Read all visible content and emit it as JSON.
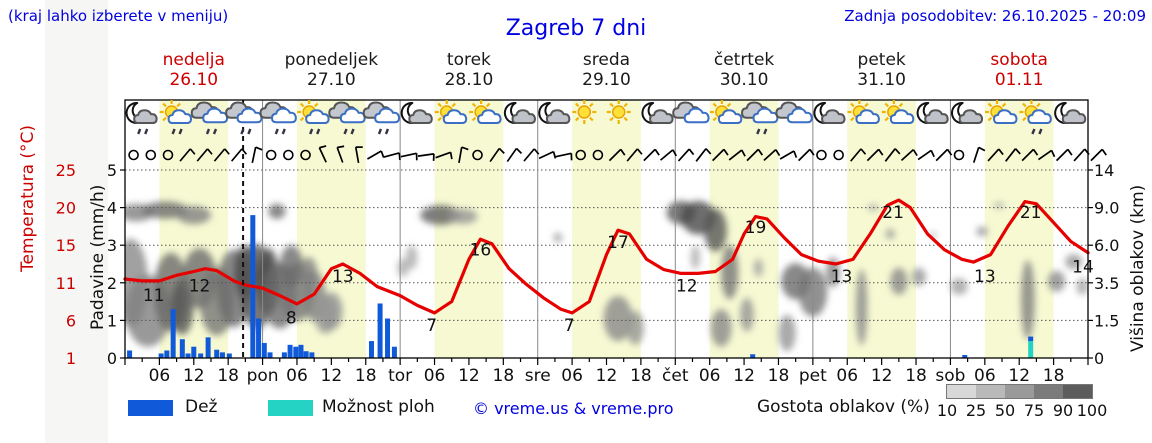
{
  "header": {
    "note": "(kraj lahko izberete v meniju)",
    "title": "Zagreb 7 dni",
    "updated": "Zadnja posodobitev: 26.10.2025 - 20:09"
  },
  "days": [
    {
      "name": "nedelja",
      "date": "26.10",
      "highlight": true
    },
    {
      "name": "ponedeljek",
      "date": "27.10",
      "highlight": false
    },
    {
      "name": "torek",
      "date": "28.10",
      "highlight": false
    },
    {
      "name": "sreda",
      "date": "29.10",
      "highlight": false
    },
    {
      "name": "četrtek",
      "date": "30.10",
      "highlight": false
    },
    {
      "name": "petek",
      "date": "31.10",
      "highlight": false
    },
    {
      "name": "sobota",
      "date": "01.11",
      "highlight": true
    }
  ],
  "axes": {
    "temp_label": "Temperatura (°C)",
    "precip_label": "Padavine (mm/h)",
    "cloud_label": "Višina oblakov (km)",
    "temp_ticks": [
      1,
      6,
      11,
      15,
      20,
      25
    ],
    "precip_ticks": [
      0,
      1,
      2,
      3,
      4,
      5
    ],
    "cloud_ticks": [
      "0",
      "1.5",
      "3.5",
      "6.0",
      "9.0",
      "14"
    ],
    "hour_tick_labels": [
      "06",
      "12",
      "18"
    ],
    "day_abbrevs": [
      "pon",
      "tor",
      "sre",
      "čet",
      "pet",
      "sob"
    ]
  },
  "legend": {
    "rain": "Dež",
    "shower": "Možnost ploh",
    "copyright": "© vreme.us & vreme.pro",
    "cloud_density": "Gostota oblakov (%)",
    "cloud_scale": [
      10,
      25,
      50,
      75,
      90,
      100
    ],
    "cloud_scale_colors": [
      "#d8d8d8",
      "#b9b9b9",
      "#9a9a9a",
      "#7b7b7b",
      "#5c5c5c"
    ]
  },
  "colors": {
    "blue_text": "#0000e0",
    "red_text": "#cc0000",
    "temp_line": "#e60000",
    "rain_bar": "#1059d9",
    "shower_bar": "#25d3c5",
    "day_band": "#f6f9d2",
    "grid": "#555555",
    "day_separator": "#8a8a8a"
  },
  "chart_data": {
    "type": "weather-meteogram",
    "x_range_hours": [
      0,
      168
    ],
    "now_hour": 20.6,
    "daylight_hours": [
      6,
      18
    ],
    "temp_scale_anchors": [
      [
        1,
        0
      ],
      [
        6,
        1
      ],
      [
        11,
        2
      ],
      [
        15,
        3
      ],
      [
        20,
        4
      ],
      [
        25,
        5
      ]
    ],
    "cloud_km_anchors": [
      [
        0,
        0
      ],
      [
        1.5,
        1
      ],
      [
        3.5,
        2
      ],
      [
        6,
        3
      ],
      [
        9,
        4
      ],
      [
        14,
        5
      ]
    ],
    "temperature_c": [
      [
        0,
        11.4
      ],
      [
        3,
        11.2
      ],
      [
        6,
        11.2
      ],
      [
        9,
        11.8
      ],
      [
        12,
        12.2
      ],
      [
        14,
        12.5
      ],
      [
        16,
        12.3
      ],
      [
        19,
        11.2
      ],
      [
        21,
        10.7
      ],
      [
        24,
        10.3
      ],
      [
        27,
        9.3
      ],
      [
        30,
        8.2
      ],
      [
        33,
        9.5
      ],
      [
        36,
        12.5
      ],
      [
        38,
        13
      ],
      [
        41,
        12
      ],
      [
        44,
        10.5
      ],
      [
        48,
        9.3
      ],
      [
        51,
        8
      ],
      [
        54,
        7
      ],
      [
        57,
        8.5
      ],
      [
        60,
        13.5
      ],
      [
        62,
        15.8
      ],
      [
        64,
        15.2
      ],
      [
        67,
        12.5
      ],
      [
        70,
        10.8
      ],
      [
        73,
        9
      ],
      [
        76,
        7.5
      ],
      [
        78,
        7
      ],
      [
        81,
        8.5
      ],
      [
        84,
        14
      ],
      [
        86,
        17
      ],
      [
        88,
        16.5
      ],
      [
        91,
        13.5
      ],
      [
        94,
        12.4
      ],
      [
        97,
        12
      ],
      [
        100,
        12
      ],
      [
        103,
        12.2
      ],
      [
        106,
        13.5
      ],
      [
        108,
        16.5
      ],
      [
        110,
        18.8
      ],
      [
        112,
        18.5
      ],
      [
        115,
        16
      ],
      [
        118,
        14
      ],
      [
        121,
        13.3
      ],
      [
        124,
        13
      ],
      [
        127,
        13.5
      ],
      [
        130,
        16.5
      ],
      [
        133,
        20.3
      ],
      [
        135,
        21
      ],
      [
        137,
        20
      ],
      [
        140,
        16.5
      ],
      [
        143,
        14.5
      ],
      [
        146,
        13.5
      ],
      [
        148,
        13.2
      ],
      [
        151,
        14
      ],
      [
        154,
        17.5
      ],
      [
        157,
        20.8
      ],
      [
        159,
        20.5
      ],
      [
        162,
        18
      ],
      [
        165,
        15.5
      ],
      [
        168,
        14.2
      ]
    ],
    "temp_labels": [
      [
        5,
        11
      ],
      [
        13,
        12
      ],
      [
        29,
        8
      ],
      [
        38,
        13
      ],
      [
        53.5,
        7
      ],
      [
        62,
        16
      ],
      [
        77.5,
        7
      ],
      [
        86,
        17
      ],
      [
        98,
        12
      ],
      [
        110,
        19
      ],
      [
        125,
        13
      ],
      [
        134,
        21
      ],
      [
        150,
        13
      ],
      [
        158,
        21
      ],
      [
        167.5,
        14
      ]
    ],
    "rain_mm_h": [
      [
        0.8,
        0.2
      ],
      [
        6.3,
        0.12
      ],
      [
        7.3,
        0.2
      ],
      [
        8.4,
        1.3
      ],
      [
        10,
        0.5
      ],
      [
        11,
        0.12
      ],
      [
        12,
        0.3
      ],
      [
        13.2,
        0.12
      ],
      [
        14.5,
        0.55
      ],
      [
        16,
        0.22
      ],
      [
        17,
        0.15
      ],
      [
        18.2,
        0.12
      ],
      [
        22.3,
        3.8
      ],
      [
        23.3,
        1.05
      ],
      [
        24.3,
        0.4
      ],
      [
        25.3,
        0.15
      ],
      [
        27.8,
        0.15
      ],
      [
        28.8,
        0.35
      ],
      [
        29.8,
        0.3
      ],
      [
        30.7,
        0.35
      ],
      [
        31.6,
        0.18
      ],
      [
        32.6,
        0.15
      ],
      [
        43,
        0.45
      ],
      [
        44.5,
        1.45
      ],
      [
        45.8,
        1.05
      ],
      [
        47,
        0.3
      ],
      [
        109.5,
        0.1
      ],
      [
        146.5,
        0.08
      ],
      [
        158,
        0.12,
        0.45
      ]
    ],
    "shower_mm_h": [
      [
        158,
        0.45
      ]
    ],
    "cloud_blobs": [
      [
        2,
        8.6,
        3,
        0.9,
        0.5
      ],
      [
        7,
        8.8,
        4,
        1.0,
        0.6
      ],
      [
        12,
        8.4,
        3,
        0.8,
        0.5
      ],
      [
        1,
        3.5,
        3,
        3,
        0.45
      ],
      [
        4,
        2,
        4,
        2,
        0.5
      ],
      [
        8,
        3,
        3,
        2.5,
        0.6
      ],
      [
        10,
        2.2,
        2,
        1.5,
        0.7
      ],
      [
        13,
        3.8,
        3,
        2,
        0.6
      ],
      [
        16,
        2.5,
        3,
        2,
        0.55
      ],
      [
        19,
        3.2,
        3,
        2.5,
        0.6
      ],
      [
        21,
        4.2,
        2,
        1.8,
        0.75
      ],
      [
        23,
        3.3,
        3,
        2.8,
        0.7
      ],
      [
        25,
        3.6,
        2,
        2.2,
        0.75
      ],
      [
        27,
        2.8,
        3,
        2,
        0.6
      ],
      [
        30,
        3,
        3,
        1.8,
        0.55
      ],
      [
        33,
        2.8,
        2,
        1.5,
        0.5
      ],
      [
        35,
        1.8,
        2,
        1,
        0.4
      ],
      [
        26.5,
        8.7,
        1.5,
        0.8,
        0.6
      ],
      [
        29,
        4.6,
        2,
        1.4,
        0.6
      ],
      [
        32,
        4.2,
        1.5,
        1,
        0.5
      ],
      [
        36,
        2,
        2,
        1,
        0.4
      ],
      [
        55,
        8.4,
        3.5,
        0.9,
        0.65
      ],
      [
        59,
        8.3,
        2.5,
        0.6,
        0.4
      ],
      [
        50,
        5.2,
        1,
        0.8,
        0.3
      ],
      [
        48.5,
        4.5,
        1,
        0.6,
        0.3
      ],
      [
        75.5,
        6.6,
        0.8,
        0.4,
        0.35
      ],
      [
        86,
        1.6,
        2.5,
        1.2,
        0.45
      ],
      [
        89,
        1.2,
        1.5,
        0.8,
        0.4
      ],
      [
        97,
        8.6,
        2.5,
        1.3,
        0.7
      ],
      [
        100,
        8.2,
        3,
        1.7,
        0.75
      ],
      [
        103,
        7.2,
        2,
        1.7,
        0.7
      ],
      [
        99.5,
        5.2,
        0.8,
        0.8,
        0.3
      ],
      [
        105.5,
        4.2,
        1.5,
        1.8,
        0.55
      ],
      [
        104,
        1.2,
        1.8,
        0.9,
        0.45
      ],
      [
        108.5,
        1.8,
        1.2,
        0.9,
        0.4
      ],
      [
        110.5,
        4.5,
        0.8,
        0.6,
        0.35
      ],
      [
        117,
        3.6,
        2.5,
        1.2,
        0.6
      ],
      [
        120,
        3,
        2.5,
        1.5,
        0.55
      ],
      [
        115.5,
        1,
        1.5,
        0.8,
        0.4
      ],
      [
        123.5,
        4.2,
        1.2,
        1,
        0.5
      ],
      [
        128.5,
        2.2,
        1,
        2.2,
        0.45
      ],
      [
        130.5,
        9,
        1,
        0.4,
        0.35
      ],
      [
        135,
        3.6,
        1.5,
        0.9,
        0.45
      ],
      [
        138.5,
        3.9,
        1.2,
        0.6,
        0.4
      ],
      [
        133.5,
        6.9,
        0.8,
        0.4,
        0.4
      ],
      [
        141,
        6.8,
        0.5,
        0.3,
        0.3
      ],
      [
        145.5,
        3.3,
        1.5,
        0.5,
        0.35
      ],
      [
        149.5,
        7.1,
        1,
        0.4,
        0.4
      ],
      [
        152.5,
        9.3,
        1,
        0.35,
        0.35
      ],
      [
        157.5,
        2.6,
        1.2,
        2.4,
        0.5
      ],
      [
        162.5,
        3.6,
        1.5,
        0.7,
        0.45
      ],
      [
        165.5,
        4.9,
        1.5,
        0.5,
        0.4
      ],
      [
        167,
        3.3,
        1,
        0.5,
        0.35
      ]
    ],
    "sky_icons": [
      "moon-cloud-rain",
      "sun-cloud-rain",
      "cloud-rain",
      "cloud-rain",
      "cloud-rain",
      "sun-cloud-rain",
      "cloud-rain",
      "cloud-rain",
      "moon-cloud",
      "sun-cloud",
      "sun-cloud",
      "moon-cloud",
      "moon-cloud",
      "sun",
      "sun",
      "moon-cloud",
      "cloud",
      "sun-cloud",
      "cloud-rain",
      "cloud",
      "moon-cloud",
      "sun-cloud",
      "sun-cloud",
      "moon-cloud",
      "moon-cloud",
      "sun-cloud",
      "sun-cloud-rain",
      "moon-cloud"
    ],
    "wind_3h": [
      "c",
      "c",
      "c",
      50,
      50,
      50,
      50,
      78,
      "c",
      "c",
      "c",
      115,
      110,
      100,
      30,
      15,
      12,
      8,
      20,
      80,
      "c",
      55,
      55,
      50,
      25,
      12,
      "c",
      "c",
      45,
      50,
      45,
      40,
      48,
      52,
      45,
      38,
      45,
      42,
      30,
      45,
      "c",
      "c",
      50,
      45,
      52,
      42,
      35,
      45,
      "c",
      72,
      48,
      52,
      45,
      35,
      45,
      48,
      45
    ]
  }
}
